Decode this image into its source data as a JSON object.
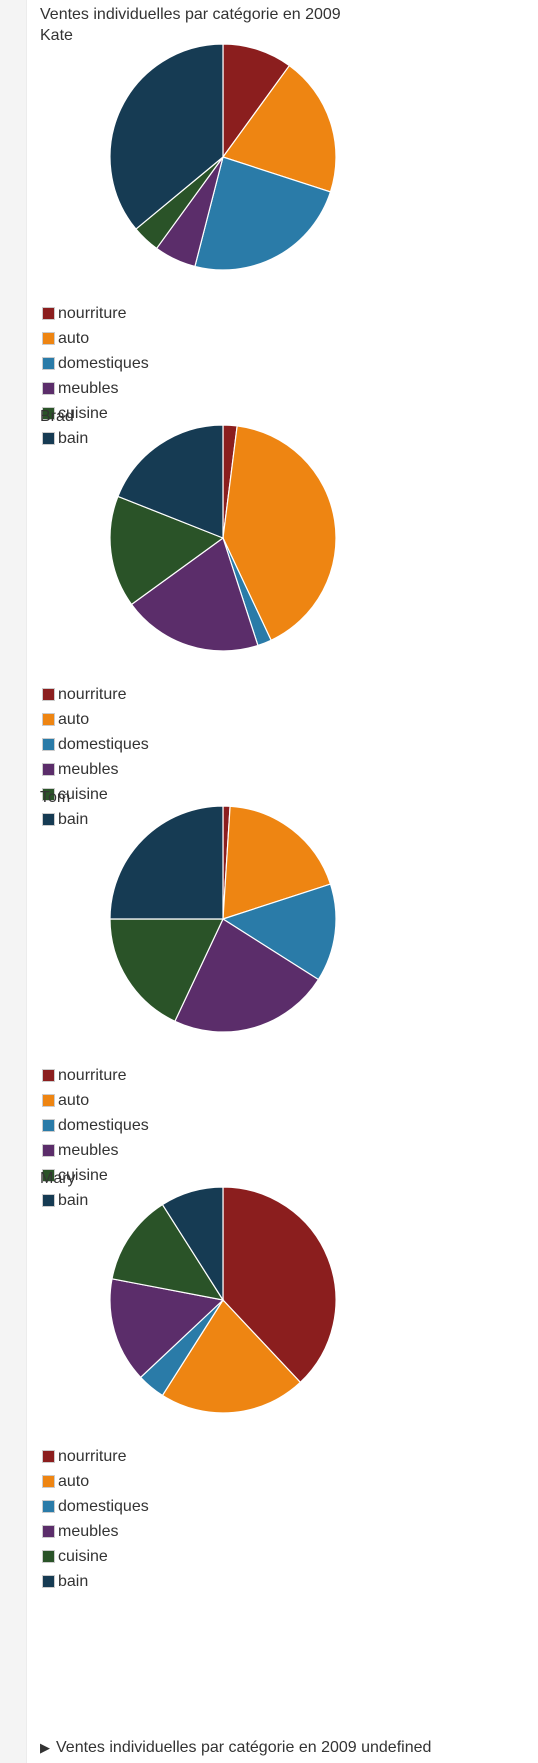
{
  "page": {
    "title": "Ventes individuelles par catégorie en 2009",
    "footer_label": "Ventes individuelles par catégorie en 2009 undefined",
    "footer_arrow_icon": "triangle-right-icon"
  },
  "colors": {
    "nourriture": "#8B1E1E",
    "auto": "#EE8512",
    "domestiques": "#2A7BA8",
    "meubles": "#5B2D6A",
    "cuisine": "#2A5328",
    "bain": "#163B53"
  },
  "chart_data": [
    {
      "type": "pie",
      "title": "Kate",
      "categories": [
        "nourriture",
        "auto",
        "domestiques",
        "meubles",
        "cuisine",
        "bain"
      ],
      "values": [
        10,
        20,
        24,
        6,
        4,
        36
      ],
      "legend": "bottom-left"
    },
    {
      "type": "pie",
      "title": "Brad",
      "categories": [
        "nourriture",
        "auto",
        "domestiques",
        "meubles",
        "cuisine",
        "bain"
      ],
      "values": [
        2,
        41,
        2,
        20,
        16,
        19
      ],
      "legend": "bottom-left"
    },
    {
      "type": "pie",
      "title": "Tom",
      "categories": [
        "nourriture",
        "auto",
        "domestiques",
        "meubles",
        "cuisine",
        "bain"
      ],
      "values": [
        1,
        19,
        14,
        23,
        18,
        25
      ],
      "legend": "bottom-left"
    },
    {
      "type": "pie",
      "title": "Mary",
      "categories": [
        "nourriture",
        "auto",
        "domestiques",
        "meubles",
        "cuisine",
        "bain"
      ],
      "values": [
        38,
        21,
        4,
        15,
        13,
        9
      ],
      "legend": "bottom-left"
    }
  ]
}
